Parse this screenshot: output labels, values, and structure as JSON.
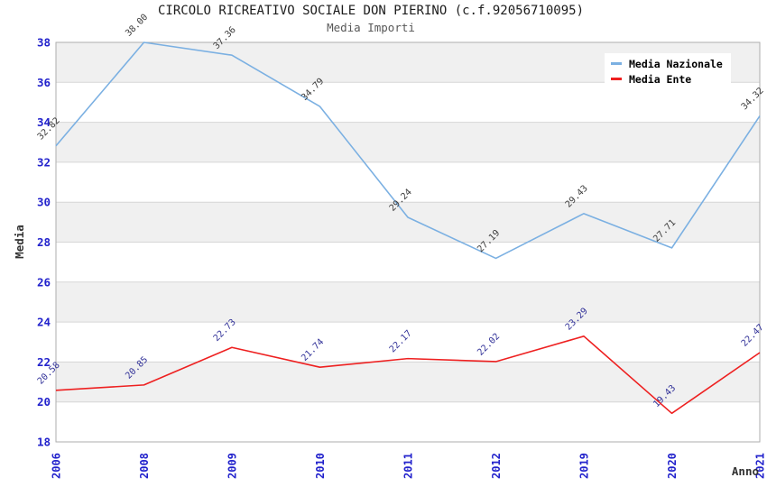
{
  "title": "CIRCOLO RICREATIVO SOCIALE DON PIERINO (c.f.92056710095)",
  "subtitle": "Media Importi",
  "chart_data": {
    "type": "line",
    "categories": [
      "2006",
      "2008",
      "2009",
      "2010",
      "2011",
      "2012",
      "2019",
      "2020",
      "2021"
    ],
    "series": [
      {
        "name": "Media Nazionale",
        "color": "#7bb0e2",
        "label_color": "#3d3d3d",
        "values": [
          32.82,
          38.0,
          37.36,
          34.79,
          29.24,
          27.19,
          29.43,
          27.71,
          34.32
        ]
      },
      {
        "name": "Media Ente",
        "color": "#ee2020",
        "label_color": "#333399",
        "values": [
          20.58,
          20.85,
          22.73,
          21.74,
          22.17,
          22.02,
          23.29,
          19.43,
          22.47
        ]
      }
    ],
    "xlabel": "Anno",
    "ylabel": "Media",
    "ylim": [
      18,
      38
    ],
    "ytick_step": 2,
    "value_label_decimals": 2,
    "grid": true,
    "band_fill": "alternating horizontal",
    "legend_position": "top-right"
  },
  "colors": {
    "tick_label": "#2222cc",
    "band": "#f0f0f0",
    "gridline": "#d6d6d6",
    "plot_border": "#aeaeae",
    "axis_title": "#333333",
    "title": "#1c1c1c",
    "subtitle": "#585858"
  }
}
